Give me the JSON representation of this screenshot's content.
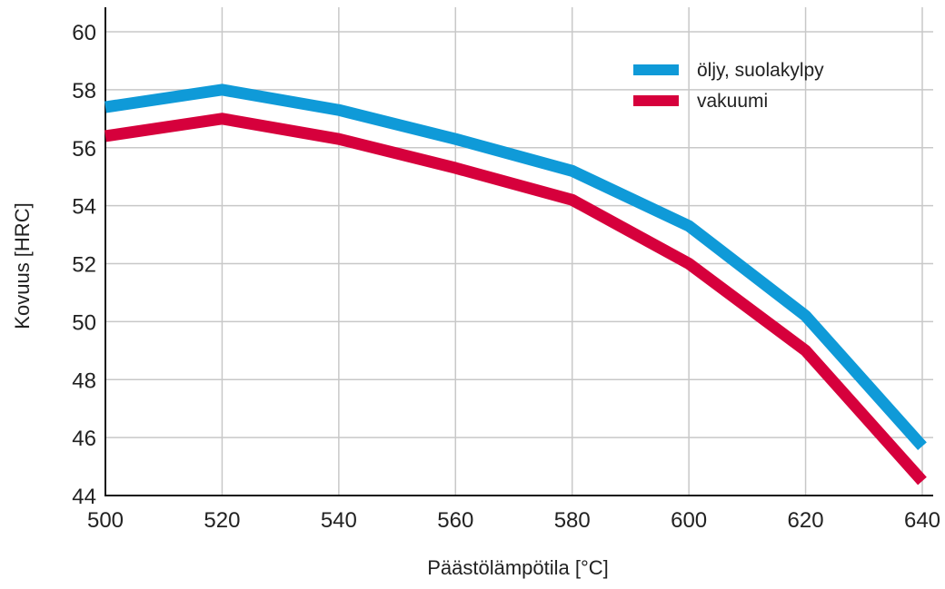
{
  "chart_data": {
    "type": "line",
    "title": "",
    "xlabel": "Päästölämpötila [°C]",
    "ylabel": "Kovuus [HRC]",
    "x": [
      500,
      520,
      540,
      560,
      580,
      600,
      620,
      640
    ],
    "xlim": [
      500,
      640
    ],
    "ylim": [
      44,
      60
    ],
    "xticks": [
      "500",
      "520",
      "540",
      "560",
      "580",
      "600",
      "620",
      "640"
    ],
    "yticks": [
      "44",
      "46",
      "48",
      "50",
      "52",
      "54",
      "56",
      "58",
      "60"
    ],
    "grid": true,
    "legend_position": "top-right",
    "series": [
      {
        "name": "öljy, suolakylpy",
        "color": "#0f9ad8",
        "values": [
          57.4,
          58.0,
          57.3,
          56.3,
          55.2,
          53.3,
          50.2,
          45.7
        ]
      },
      {
        "name": "vakuumi",
        "color": "#d6003c",
        "values": [
          56.4,
          57.0,
          56.3,
          55.3,
          54.2,
          52.0,
          49.0,
          44.5
        ]
      }
    ]
  }
}
